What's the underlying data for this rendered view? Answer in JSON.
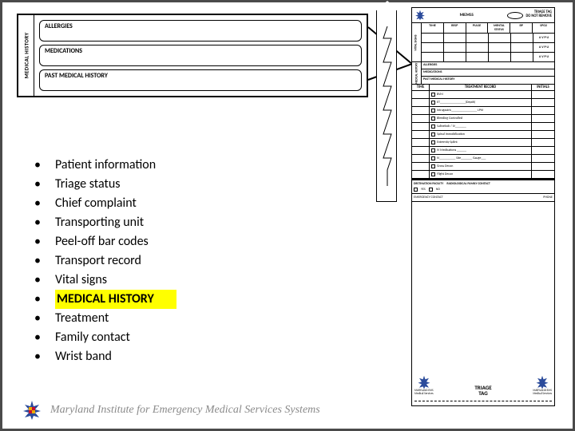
{
  "colors": {
    "border": "#4a4a4a",
    "black": "#000000",
    "highlight": "#ffff00",
    "footer_text": "#8a8a8a",
    "star_blue": "#2b4b9b",
    "md_red": "#c8102e",
    "md_gold": "#eaaa00"
  },
  "callout": {
    "side_label": "MEDICAL HISTORY",
    "rows": [
      "ALLERGIES",
      "MEDICATIONS",
      "PAST MEDICAL HISTORY"
    ]
  },
  "bullets": {
    "items": [
      {
        "text": "Patient information",
        "highlight": false
      },
      {
        "text": "Triage status",
        "highlight": false
      },
      {
        "text": "Chief complaint",
        "highlight": false
      },
      {
        "text": "Transporting unit",
        "highlight": false
      },
      {
        "text": "Peel-off bar codes",
        "highlight": false
      },
      {
        "text": "Transport record",
        "highlight": false
      },
      {
        "text": "Vital signs",
        "highlight": false
      },
      {
        "text": "MEDICAL HISTORY",
        "highlight": true
      },
      {
        "text": "Treatment",
        "highlight": false
      },
      {
        "text": "Family contact",
        "highlight": false
      },
      {
        "text": "Wrist band",
        "highlight": false
      }
    ]
  },
  "triage_tag": {
    "header_text": "MIEMSS",
    "header_right1": "TRIAGE TAG",
    "header_right2": "DO NOT REMOVE",
    "vitals_side": "VITAL SIGNS",
    "vitals_cols": [
      "TIME",
      "RESP",
      "PULSE",
      "MENTAL STATUS",
      "BP",
      "SPO2"
    ],
    "avpu": "A V P U",
    "mh_side": "MEDICAL HISTORY",
    "mh_rows": [
      "ALLERGIES",
      "MEDICATIONS",
      "PAST MEDICAL HISTORY"
    ],
    "treatment_cols": [
      "TIME",
      "TREATMENT RECORD",
      "INITIALS"
    ],
    "treatments": [
      "BVM",
      "ET________________(Depth)",
      "Intragastric________________  LPM",
      "Bleeding Controlled",
      "Salinelock / IV_______",
      "Spinal Immobilization",
      "Extremity Splint",
      "IV Medications ______",
      "IV__________ Site_______ Gauge___",
      "Gross Decon",
      "Flight Decon"
    ],
    "dest_label1": "DESTINATION FACILITY",
    "dest_label2": "RADIOLOGICAL FAMILY CONTACT",
    "dest_yes": "YES",
    "dest_no": "NO",
    "emerg_label": "EMERGENCY CONTACT",
    "emerg_phone": "PHONE",
    "bottom_label": "MARYLAND EMS",
    "bottom_sub": "Medical Services",
    "triage_label": "TRIAGE\nTAG"
  },
  "footer": {
    "text": "Maryland Institute for Emergency Medical Services Systems"
  }
}
